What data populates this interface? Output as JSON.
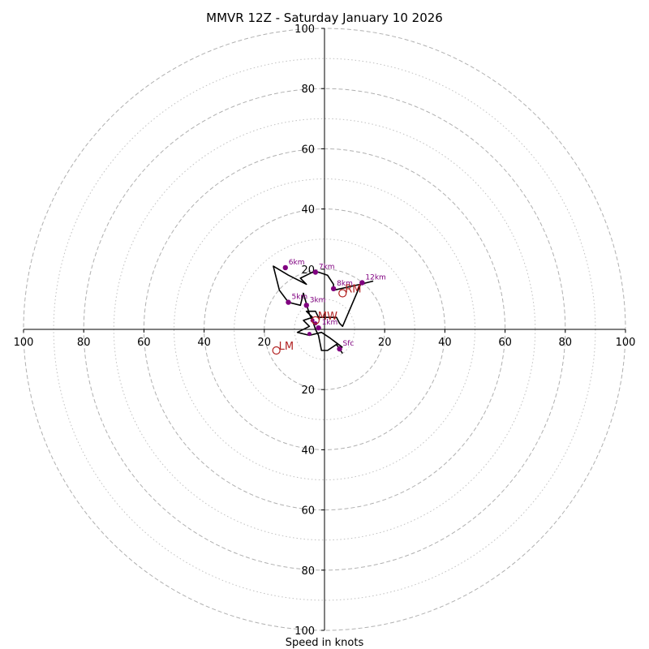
{
  "chart_data": {
    "type": "hodograph",
    "title": "MMVR 12Z - Saturday January 10 2026",
    "xlabel": "Speed in knots",
    "range": [
      -100,
      100
    ],
    "rings_major": [
      20,
      40,
      60,
      80,
      100
    ],
    "rings_minor": [
      10,
      30,
      50,
      70,
      90
    ],
    "x_ticks": [
      {
        "value": -100,
        "label": "100"
      },
      {
        "value": -80,
        "label": "80"
      },
      {
        "value": -60,
        "label": "60"
      },
      {
        "value": -40,
        "label": "40"
      },
      {
        "value": -20,
        "label": "20"
      },
      {
        "value": 20,
        "label": "20"
      },
      {
        "value": 40,
        "label": "40"
      },
      {
        "value": 60,
        "label": "60"
      },
      {
        "value": 80,
        "label": "80"
      },
      {
        "value": 100,
        "label": "100"
      }
    ],
    "y_ticks": [
      {
        "value": 100,
        "label": "100"
      },
      {
        "value": 80,
        "label": "80"
      },
      {
        "value": 60,
        "label": "60"
      },
      {
        "value": 40,
        "label": "40"
      },
      {
        "value": 20,
        "label": "20"
      },
      {
        "value": -20,
        "label": "20"
      },
      {
        "value": -40,
        "label": "40"
      },
      {
        "value": -60,
        "label": "60"
      },
      {
        "value": -80,
        "label": "80"
      },
      {
        "value": -100,
        "label": "100"
      }
    ],
    "trace": [
      [
        6,
        -6
      ],
      [
        2,
        -3
      ],
      [
        -1,
        -1
      ],
      [
        -5,
        -2
      ],
      [
        -9,
        -1
      ],
      [
        -5,
        1
      ],
      [
        -7,
        3
      ],
      [
        -4,
        4
      ],
      [
        -6,
        6
      ],
      [
        -3,
        6
      ],
      [
        -2,
        4
      ],
      [
        1,
        4
      ],
      [
        4,
        4
      ],
      [
        5,
        2
      ],
      [
        6,
        1
      ],
      [
        12,
        15
      ],
      [
        16,
        16
      ],
      [
        12,
        15
      ],
      [
        3,
        13
      ],
      [
        3,
        15
      ],
      [
        1,
        18
      ],
      [
        -2,
        19
      ],
      [
        -4,
        19
      ],
      [
        -8,
        17
      ],
      [
        -6,
        15
      ],
      [
        -12,
        18
      ],
      [
        -17,
        21
      ],
      [
        -15,
        13
      ],
      [
        -12,
        9
      ],
      [
        -8,
        8
      ],
      [
        -7,
        12
      ],
      [
        -5,
        5
      ],
      [
        -4,
        3
      ],
      [
        -3,
        0
      ],
      [
        -2,
        -2
      ],
      [
        -1,
        -7
      ],
      [
        1,
        -7
      ],
      [
        4,
        -5
      ],
      [
        6,
        -8
      ]
    ],
    "height_markers": [
      {
        "label": "Sfc",
        "x": 5,
        "y": -6.5
      },
      {
        "label": "1km",
        "x": -2,
        "y": 0.5
      },
      {
        "label": "3km",
        "x": -6,
        "y": 8
      },
      {
        "label": "5km",
        "x": -12,
        "y": 9
      },
      {
        "label": "6km",
        "x": -13,
        "y": 20.5
      },
      {
        "label": "7km",
        "x": -3,
        "y": 19
      },
      {
        "label": "8km",
        "x": 3,
        "y": 13.5
      },
      {
        "label": "12km",
        "x": 12.5,
        "y": 15.5
      }
    ],
    "extra_points": [
      {
        "x": -5,
        "y": -1.5
      },
      {
        "x": -4,
        "y": 3
      },
      {
        "x": -3,
        "y": 2
      }
    ],
    "storm_motion": [
      {
        "label": "RM",
        "x": 6,
        "y": 12
      },
      {
        "label": "LM",
        "x": -16,
        "y": -7
      },
      {
        "label": "MW",
        "x": -3,
        "y": 3
      }
    ],
    "motion_color": "#b22222",
    "marker_color": "#800080",
    "trace_color": "#000000",
    "ring_color": "#b0b0b0"
  }
}
